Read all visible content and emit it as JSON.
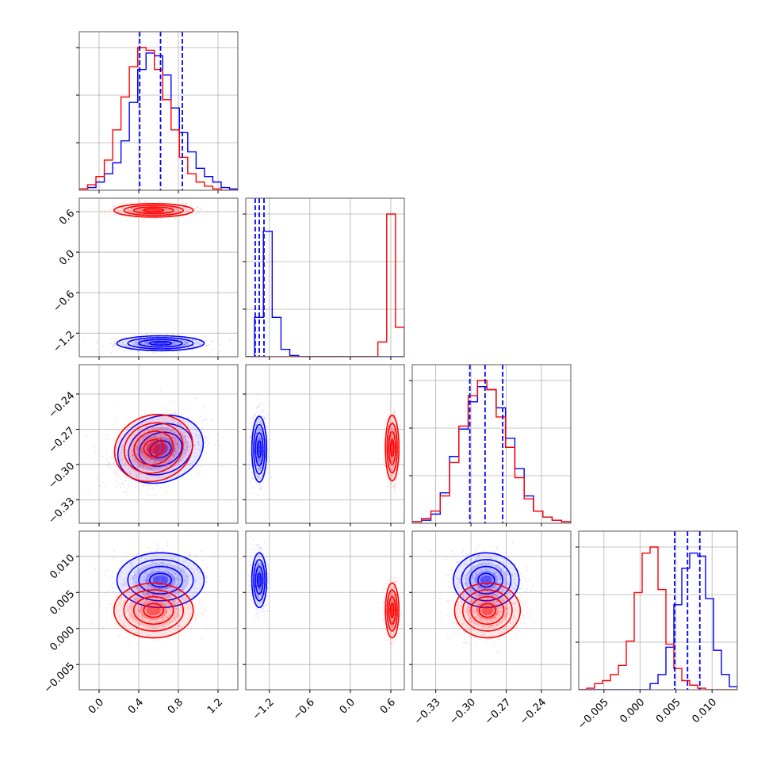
{
  "colors": {
    "series_a": "#0000ff",
    "series_b": "#ff0000",
    "grid": "#b0b0b0",
    "frame": "#000000"
  },
  "chart_data": {
    "type": "corner",
    "parameters": 4,
    "grid": true,
    "axes_ranges": [
      [
        -0.2,
        1.4
      ],
      [
        -1.55,
        0.8
      ],
      [
        -0.35,
        -0.215
      ],
      [
        -0.0085,
        0.0135
      ]
    ],
    "y_ranges_2d_rows": {
      "row1": [
        -1.55,
        0.8
      ],
      "row2": [
        -0.35,
        -0.215
      ],
      "row3": [
        -0.0085,
        0.0135
      ]
    },
    "ticks": {
      "p0": [
        "0.0",
        "0.4",
        "0.8",
        "1.2"
      ],
      "p0_values": [
        0.0,
        0.4,
        0.8,
        1.2
      ],
      "p1": [
        "-1.2",
        "-0.6",
        "0.0",
        "0.6"
      ],
      "p1_values": [
        -1.2,
        -0.6,
        0.0,
        0.6
      ],
      "p2": [
        "-0.33",
        "-0.30",
        "-0.27",
        "-0.24"
      ],
      "p2_values": [
        -0.33,
        -0.3,
        -0.27,
        -0.24
      ],
      "p3": [
        "-0.005",
        "0.000",
        "0.005",
        "0.010"
      ],
      "p3_values": [
        -0.005,
        0.0,
        0.005,
        0.01
      ]
    },
    "tick_text": {
      "p0": [
        "0.0",
        "0.4",
        "0.8",
        "1.2"
      ],
      "p1": [
        "−1.2",
        "−0.6",
        "0.0",
        "0.6"
      ],
      "p2": [
        "−0.33",
        "−0.30",
        "−0.27",
        "−0.24"
      ],
      "p3": [
        "−0.005",
        "0.000",
        "0.005",
        "0.010"
      ],
      "row1_y": [
        "0.6",
        "0.0",
        "−0.6",
        "−1.2"
      ],
      "row2_y": [
        "−0.24",
        "−0.27",
        "−0.30",
        "−0.33"
      ],
      "row3_y": [
        "0.010",
        "0.005",
        "0.000",
        "−0.005"
      ]
    },
    "series": [
      {
        "color": "#0000ff",
        "means": [
          0.62,
          -1.35,
          -0.287,
          0.0067
        ],
        "stds": [
          0.22,
          0.055,
          0.014,
          0.0019
        ],
        "quantiles": [
          [
            0.41,
            0.62,
            0.84
          ],
          [
            -1.41,
            -1.35,
            -1.28
          ],
          [
            -0.301,
            -0.288,
            -0.273
          ],
          [
            0.0048,
            0.0066,
            0.0083
          ]
        ],
        "hist_0": [
          0.5,
          1,
          3,
          6,
          10,
          18,
          32,
          44,
          50,
          49,
          42,
          30,
          21,
          14,
          8,
          5,
          3,
          1,
          0.5
        ],
        "hist_1": [
          0,
          16,
          51,
          16,
          3,
          0.5,
          0,
          0,
          0,
          0,
          0,
          0,
          0,
          0,
          0,
          0,
          0,
          0
        ],
        "hist_2": [
          0.5,
          1,
          3,
          10,
          22,
          31,
          40,
          45,
          44,
          38,
          28,
          18,
          9,
          4,
          2,
          1,
          0.5
        ],
        "hist_3": [
          0,
          0,
          0,
          0,
          0,
          0,
          0,
          0,
          0,
          2,
          5,
          14,
          28,
          40,
          45,
          44,
          30,
          13,
          5,
          1
        ]
      },
      {
        "color": "#ff0000",
        "means": [
          0.55,
          0.62,
          -0.286,
          0.0025
        ],
        "stds": [
          0.2,
          0.05,
          0.014,
          0.0019
        ],
        "quantiles": [],
        "hist_0": [
          0.5,
          2,
          5,
          11,
          22,
          34,
          45,
          52,
          51,
          44,
          33,
          22,
          12,
          6,
          3,
          1.5,
          0.5,
          0,
          0
        ],
        "hist_1": [
          0,
          0,
          0,
          0,
          0,
          0,
          0,
          0,
          0,
          0,
          0,
          0,
          0,
          0,
          0,
          6,
          58,
          12
        ],
        "hist_2": [
          0.5,
          1.5,
          4,
          9,
          20,
          32,
          42,
          47,
          44,
          35,
          25,
          15,
          8,
          4,
          2,
          1,
          0.5
        ],
        "hist_3": [
          0,
          0.5,
          2,
          3,
          5,
          8,
          16,
          32,
          45,
          47,
          33,
          15,
          7,
          3,
          1.5,
          0.5,
          0,
          0,
          0,
          0
        ]
      }
    ]
  }
}
